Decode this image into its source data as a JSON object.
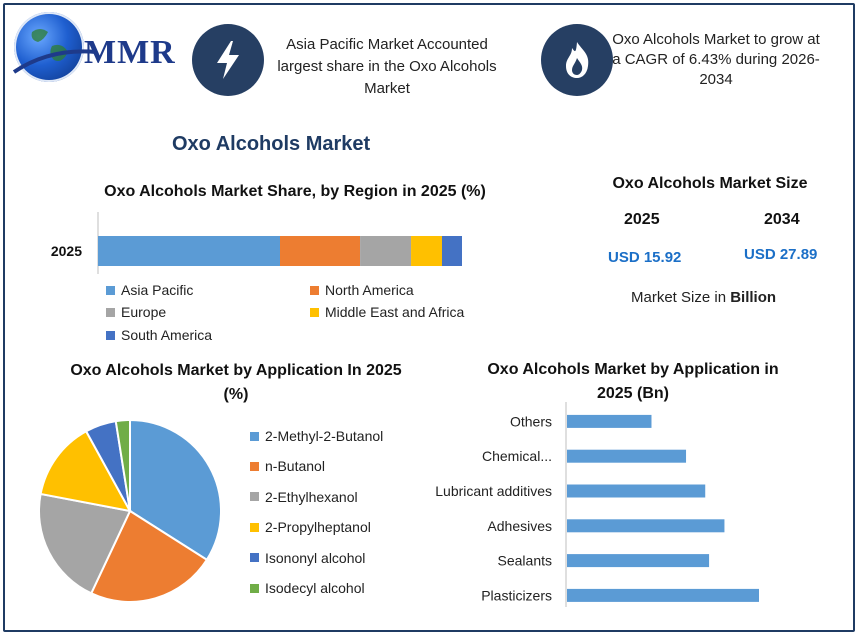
{
  "brand": {
    "logo_text": "MMR"
  },
  "header": {
    "left_text": "Asia Pacific Market Accounted largest share in the Oxo Alcohols Market",
    "right_text": "Oxo Alcohols Market to grow at a CAGR of 6.43% during 2026-2034",
    "left_icon": "lightning-icon",
    "right_icon": "flame-icon"
  },
  "main_title": "Oxo Alcohols Market",
  "market_size": {
    "title": "Oxo Alcohols Market Size",
    "year_a": "2025",
    "year_b": "2034",
    "value_a": "USD 15.92",
    "value_b": "USD 27.89",
    "note_prefix": "Market Size in ",
    "note_bold": "Billion"
  },
  "colors": {
    "blue": "#5b9bd5",
    "orange": "#ed7d31",
    "gray": "#a5a5a5",
    "yellow": "#ffc000",
    "darkblue": "#4472c4",
    "green": "#70ad47",
    "navy": "#263f63"
  },
  "chart_data": [
    {
      "type": "bar",
      "orientation": "horizontal-stacked",
      "title": "Oxo Alcohols Market Share, by Region in 2025 (%)",
      "categories": [
        "2025"
      ],
      "series": [
        {
          "name": "Asia Pacific",
          "values": [
            50
          ],
          "color": "#5b9bd5"
        },
        {
          "name": "North America",
          "values": [
            22
          ],
          "color": "#ed7d31"
        },
        {
          "name": "Europe",
          "values": [
            14
          ],
          "color": "#a5a5a5"
        },
        {
          "name": "Middle East and Africa",
          "values": [
            8.5
          ],
          "color": "#ffc000"
        },
        {
          "name": "South America",
          "values": [
            5.5
          ],
          "color": "#4472c4"
        }
      ],
      "legend": "bottom"
    },
    {
      "type": "pie",
      "title": "Oxo Alcohols Market by Application In 2025 (%)",
      "categories": [
        "2-Methyl-2-Butanol",
        "n-Butanol",
        "2-Ethylhexanol",
        "2-Propylheptanol",
        "Isononyl alcohol",
        "Isodecyl alcohol"
      ],
      "values": [
        34,
        23,
        21,
        14,
        5.5,
        2.5
      ],
      "colors": [
        "#5b9bd5",
        "#ed7d31",
        "#a5a5a5",
        "#ffc000",
        "#4472c4",
        "#70ad47"
      ],
      "legend": "right"
    },
    {
      "type": "bar",
      "orientation": "horizontal",
      "title": "Oxo Alcohols Market by Application in 2025 (Bn)",
      "categories": [
        "Others",
        "Chemical...",
        "Lubricant additives",
        "Adhesives",
        "Sealants",
        "Plasticizers"
      ],
      "values": [
        1.1,
        1.55,
        1.8,
        2.05,
        1.85,
        2.5
      ],
      "color": "#5b9bd5"
    }
  ]
}
